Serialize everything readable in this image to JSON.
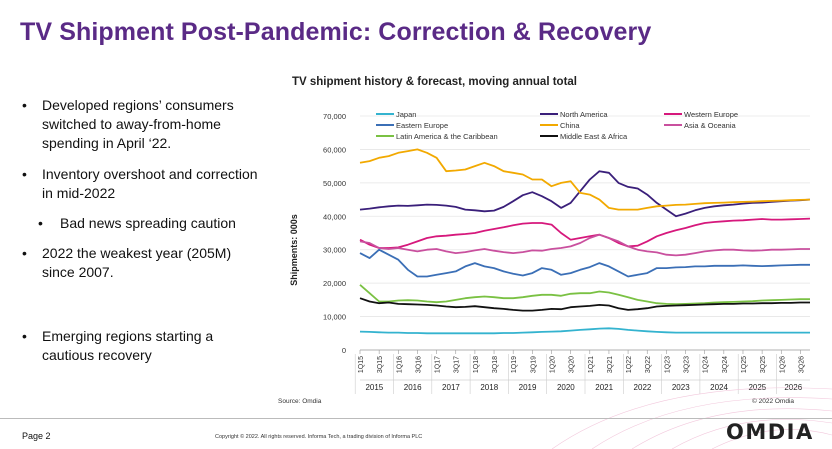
{
  "slide": {
    "title": "TV Shipment Post-Pandemic: Correction & Recovery",
    "bullets": [
      {
        "text": "Developed regions’ consumers switched to away-from-home spending in April ‘22.",
        "sub": false
      },
      {
        "text": "Inventory overshoot and correction in mid-2022",
        "sub": false
      },
      {
        "text": "Bad news spreading caution",
        "sub": true
      },
      {
        "text": "2022 the weakest year (205M) since 2007.",
        "sub": false
      },
      {
        "text": "Emerging regions starting a cautious recovery",
        "sub": false
      }
    ],
    "source": "Source: Omdia",
    "chart_copyright": "© 2022 Omdia",
    "page": "Page 2",
    "copyright": "Copyright © 2022. All rights reserved. Informa Tech, a trading division of Informa PLC",
    "logo": "OMDIA"
  },
  "chart_data": {
    "type": "line",
    "title": "TV shipment history & forecast, moving annual total",
    "ylabel": "Shipments: 000s",
    "ylim": [
      0,
      70000
    ],
    "yticks": [
      "0",
      "10,000",
      "20,000",
      "30,000",
      "40,000",
      "50,000",
      "60,000",
      "70,000"
    ],
    "x": [
      "1Q15",
      "2Q15",
      "3Q15",
      "4Q15",
      "1Q16",
      "2Q16",
      "3Q16",
      "4Q16",
      "1Q17",
      "2Q17",
      "3Q17",
      "4Q17",
      "1Q18",
      "2Q18",
      "3Q18",
      "4Q18",
      "1Q19",
      "2Q19",
      "3Q19",
      "4Q19",
      "1Q20",
      "2Q20",
      "3Q20",
      "4Q20",
      "1Q21",
      "2Q21",
      "3Q21",
      "4Q21",
      "1Q22",
      "2Q22",
      "3Q22",
      "4Q22",
      "1Q23",
      "2Q23",
      "3Q23",
      "4Q23",
      "1Q24",
      "2Q24",
      "3Q24",
      "4Q24",
      "1Q25",
      "2Q25",
      "3Q25",
      "4Q25",
      "1Q26",
      "2Q26",
      "3Q26",
      "4Q26"
    ],
    "x_tick_labels": [
      "1Q15",
      "3Q15",
      "1Q16",
      "3Q16",
      "1Q17",
      "3Q17",
      "1Q18",
      "3Q18",
      "1Q19",
      "3Q19",
      "1Q20",
      "3Q20",
      "1Q21",
      "3Q21",
      "1Q22",
      "3Q22",
      "1Q23",
      "3Q23",
      "1Q24",
      "3Q24",
      "1Q25",
      "3Q25",
      "1Q26",
      "3Q26"
    ],
    "years": [
      "2015",
      "2016",
      "2017",
      "2018",
      "2019",
      "2020",
      "2021",
      "2022",
      "2023",
      "2024",
      "2025",
      "2026"
    ],
    "legend_position": "top",
    "series": [
      {
        "name": "Japan",
        "color": "#34b3cf",
        "values": [
          5500,
          5400,
          5300,
          5200,
          5200,
          5100,
          5100,
          5000,
          5000,
          5000,
          5000,
          5000,
          5000,
          5000,
          5000,
          5100,
          5100,
          5200,
          5300,
          5400,
          5500,
          5600,
          5800,
          6000,
          6200,
          6400,
          6500,
          6300,
          6000,
          5800,
          5600,
          5400,
          5300,
          5200,
          5200,
          5200,
          5200,
          5200,
          5200,
          5200,
          5200,
          5200,
          5200,
          5200,
          5200,
          5200,
          5200,
          5200
        ]
      },
      {
        "name": "North America",
        "color": "#3a1f7a",
        "values": [
          42000,
          42300,
          42700,
          43000,
          43200,
          43100,
          43300,
          43500,
          43400,
          43200,
          42800,
          42000,
          41800,
          41500,
          41700,
          42800,
          44500,
          46300,
          47200,
          46000,
          44500,
          42500,
          44000,
          47500,
          51000,
          53500,
          53000,
          50000,
          48800,
          48300,
          46500,
          44000,
          42000,
          40000,
          40800,
          41800,
          42500,
          43000,
          43300,
          43500,
          43800,
          44000,
          44100,
          44300,
          44500,
          44700,
          44800,
          45000
        ]
      },
      {
        "name": "Western Europe",
        "color": "#d6187c",
        "values": [
          33000,
          31500,
          30500,
          30500,
          30700,
          31500,
          32500,
          33500,
          34000,
          34200,
          34500,
          34700,
          35000,
          35700,
          36200,
          36700,
          37300,
          37800,
          38000,
          38000,
          37500,
          35000,
          33000,
          33500,
          34000,
          34500,
          33500,
          32000,
          31000,
          31200,
          32500,
          34000,
          35000,
          35800,
          36500,
          37300,
          38000,
          38300,
          38500,
          38700,
          38800,
          39000,
          39200,
          39000,
          39000,
          39100,
          39200,
          39300
        ]
      },
      {
        "name": "Eastern Europe",
        "color": "#3b6fb6",
        "values": [
          29000,
          27500,
          30000,
          28500,
          27000,
          24000,
          22000,
          22000,
          22500,
          23000,
          23500,
          25000,
          26000,
          25000,
          24500,
          23500,
          22800,
          22300,
          23000,
          24500,
          24000,
          22500,
          23000,
          24000,
          24800,
          26000,
          25000,
          23500,
          22000,
          22500,
          23000,
          24500,
          24500,
          24700,
          24800,
          25000,
          25000,
          25200,
          25200,
          25200,
          25300,
          25200,
          25100,
          25200,
          25300,
          25400,
          25500,
          25500
        ]
      },
      {
        "name": "China",
        "color": "#f2a900",
        "values": [
          56000,
          56500,
          57500,
          58000,
          59000,
          59500,
          60000,
          59000,
          57500,
          53500,
          53700,
          54000,
          55000,
          56000,
          55000,
          53500,
          53000,
          52500,
          51000,
          51000,
          49000,
          50000,
          50500,
          47000,
          46500,
          45000,
          42500,
          42000,
          42000,
          42000,
          42500,
          43000,
          43200,
          43400,
          43500,
          43700,
          43900,
          44000,
          44100,
          44200,
          44300,
          44400,
          44500,
          44600,
          44700,
          44800,
          44900,
          45000
        ]
      },
      {
        "name": "Asia & Oceania",
        "color": "#c9509e",
        "values": [
          32500,
          32000,
          30500,
          30200,
          30500,
          30000,
          29500,
          30000,
          30200,
          29500,
          29000,
          29300,
          29800,
          30200,
          29700,
          29300,
          29000,
          29300,
          29800,
          29700,
          30200,
          30500,
          31000,
          32000,
          33500,
          34500,
          33500,
          32500,
          31000,
          30000,
          29500,
          29200,
          28500,
          28300,
          28500,
          29000,
          29500,
          29800,
          30000,
          30000,
          29800,
          29700,
          29800,
          30000,
          30000,
          30100,
          30200,
          30200
        ]
      },
      {
        "name": "Latin America & the Caribbean",
        "color": "#7ac143",
        "values": [
          19500,
          17000,
          14500,
          14500,
          14800,
          14900,
          14800,
          14500,
          14300,
          14500,
          15000,
          15500,
          15800,
          16000,
          15800,
          15500,
          15500,
          15800,
          16200,
          16500,
          16500,
          16200,
          16800,
          17000,
          17000,
          17500,
          17200,
          16500,
          15800,
          15000,
          14500,
          14000,
          13800,
          13700,
          13800,
          13900,
          14000,
          14200,
          14300,
          14400,
          14500,
          14600,
          14800,
          14900,
          15000,
          15100,
          15200,
          15200
        ]
      },
      {
        "name": "Middle East & Africa",
        "color": "#111111",
        "values": [
          15500,
          14500,
          14000,
          14200,
          13800,
          13700,
          13600,
          13500,
          13300,
          13000,
          12800,
          12900,
          13100,
          12800,
          12500,
          12300,
          12000,
          11800,
          11800,
          12000,
          12300,
          12200,
          12800,
          13000,
          13200,
          13500,
          13300,
          12500,
          12000,
          12200,
          12500,
          13000,
          13200,
          13300,
          13400,
          13500,
          13600,
          13700,
          13800,
          13800,
          13900,
          13900,
          14000,
          14000,
          14100,
          14100,
          14200,
          14200
        ]
      }
    ]
  }
}
